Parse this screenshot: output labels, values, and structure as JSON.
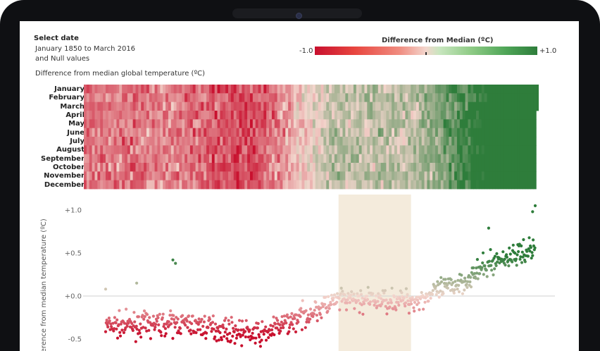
{
  "filter": {
    "title": "Select date",
    "range": "January 1850 to March 2016",
    "null_values": "and Null values"
  },
  "legend": {
    "title": "Difference from Median (ºC)",
    "min_label": "-1.0",
    "max_label": "+1.0",
    "colors": {
      "negative": "#c8102e",
      "neutral": "#f3d6cd",
      "positive": "#2e7d3b"
    }
  },
  "heatmap": {
    "caption": "Difference from median global temperature (ºC)",
    "months": [
      "January",
      "February",
      "March",
      "April",
      "May",
      "June",
      "July",
      "August",
      "September",
      "October",
      "November",
      "December"
    ],
    "year_start": 1850,
    "year_end": 2016
  },
  "chart_data": {
    "type": "scatter",
    "ylabel": "Difference from median temperature (ºC)",
    "ylim": [
      -0.65,
      1.1
    ],
    "yticks": [
      {
        "value": 1.0,
        "label": "+1.0"
      },
      {
        "value": 0.5,
        "label": "+0.5"
      },
      {
        "value": 0.0,
        "label": "+0.0"
      },
      {
        "value": -0.5,
        "label": "-0.5"
      }
    ],
    "x_range": [
      1850,
      2016
    ],
    "highlight_band": [
      1940,
      1968
    ],
    "trend": [
      {
        "year": 1850,
        "value": -0.35
      },
      {
        "year": 1880,
        "value": -0.32
      },
      {
        "year": 1910,
        "value": -0.45
      },
      {
        "year": 1940,
        "value": -0.05
      },
      {
        "year": 1970,
        "value": -0.05
      },
      {
        "year": 1990,
        "value": 0.2
      },
      {
        "year": 2000,
        "value": 0.4
      },
      {
        "year": 2016,
        "value": 0.55
      }
    ],
    "spread": 0.14,
    "outliers": [
      {
        "year": 1850,
        "value": 0.08
      },
      {
        "year": 1876,
        "value": 0.42
      },
      {
        "year": 1877,
        "value": 0.38
      },
      {
        "year": 1862,
        "value": 0.15
      },
      {
        "year": 2016,
        "value": 1.05
      },
      {
        "year": 2015,
        "value": 0.98
      },
      {
        "year": 1998,
        "value": 0.79
      }
    ]
  }
}
